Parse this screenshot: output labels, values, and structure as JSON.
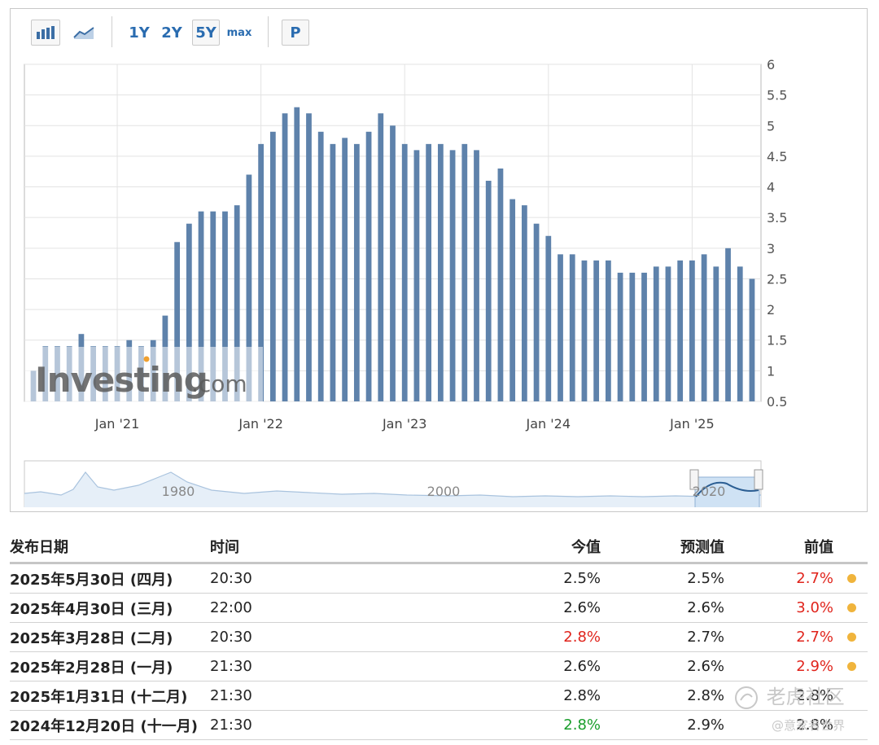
{
  "toolbar": {
    "bar_icon": "bar-chart-icon",
    "line_icon": "line-chart-icon",
    "range_buttons": [
      "1Y",
      "2Y",
      "5Y",
      "max"
    ],
    "active_range": "5Y",
    "p_label": "P"
  },
  "watermark_logo": "Investing.com",
  "chart_data": {
    "type": "bar",
    "x_tick_labels": [
      "Jan '21",
      "Jan '22",
      "Jan '23",
      "Jan '24",
      "Jan '25"
    ],
    "y_tick_labels": [
      "0.5",
      "1",
      "1.5",
      "2",
      "2.5",
      "3",
      "3.5",
      "4",
      "4.5",
      "5",
      "5.5",
      "6"
    ],
    "ylim": [
      0.5,
      6
    ],
    "grid": true,
    "bar_color": "#5e82ab",
    "start_month": "2020-06",
    "values": [
      1.0,
      1.4,
      1.4,
      1.4,
      1.6,
      1.4,
      1.4,
      1.4,
      1.5,
      1.4,
      1.5,
      1.9,
      3.1,
      3.4,
      3.6,
      3.6,
      3.6,
      3.7,
      4.2,
      4.7,
      4.9,
      5.2,
      5.3,
      5.2,
      4.9,
      4.7,
      4.8,
      4.7,
      4.9,
      5.2,
      5.0,
      4.7,
      4.6,
      4.7,
      4.7,
      4.6,
      4.7,
      4.6,
      4.1,
      4.3,
      3.8,
      3.7,
      3.4,
      3.2,
      2.9,
      2.9,
      2.8,
      2.8,
      2.8,
      2.6,
      2.6,
      2.6,
      2.7,
      2.7,
      2.8,
      2.8,
      2.9,
      2.7,
      3.0,
      2.7,
      2.5
    ]
  },
  "navigator": {
    "labels": [
      "1980",
      "2000",
      "2020"
    ]
  },
  "table": {
    "headers": {
      "date": "发布日期",
      "time": "时间",
      "actual": "今值",
      "forecast": "预测值",
      "previous": "前值"
    },
    "rows": [
      {
        "date": "2025年5月30日 (四月)",
        "time": "20:30",
        "actual": "2.5%",
        "forecast": "2.5%",
        "previous": "2.7%",
        "actual_color": "#222222",
        "previous_color": "#e0241c",
        "dot": true
      },
      {
        "date": "2025年4月30日 (三月)",
        "time": "22:00",
        "actual": "2.6%",
        "forecast": "2.6%",
        "previous": "3.0%",
        "actual_color": "#222222",
        "previous_color": "#e0241c",
        "dot": true
      },
      {
        "date": "2025年3月28日 (二月)",
        "time": "20:30",
        "actual": "2.8%",
        "forecast": "2.7%",
        "previous": "2.7%",
        "actual_color": "#e0241c",
        "previous_color": "#e0241c",
        "dot": true
      },
      {
        "date": "2025年2月28日 (一月)",
        "time": "21:30",
        "actual": "2.6%",
        "forecast": "2.6%",
        "previous": "2.9%",
        "actual_color": "#222222",
        "previous_color": "#e0241c",
        "dot": true
      },
      {
        "date": "2025年1月31日 (十二月)",
        "time": "21:30",
        "actual": "2.8%",
        "forecast": "2.8%",
        "previous": "2.8%",
        "actual_color": "#222222",
        "previous_color": "#222222",
        "dot": false
      },
      {
        "date": "2024年12月20日 (十一月)",
        "time": "21:30",
        "actual": "2.8%",
        "forecast": "2.9%",
        "previous": "2.8%",
        "actual_color": "#1a9e2c",
        "previous_color": "#222222",
        "dot": false
      }
    ],
    "dot_color": "#f0b43c"
  },
  "page_watermark": {
    "main": "老虎社区",
    "sub": "@意家者世界"
  }
}
